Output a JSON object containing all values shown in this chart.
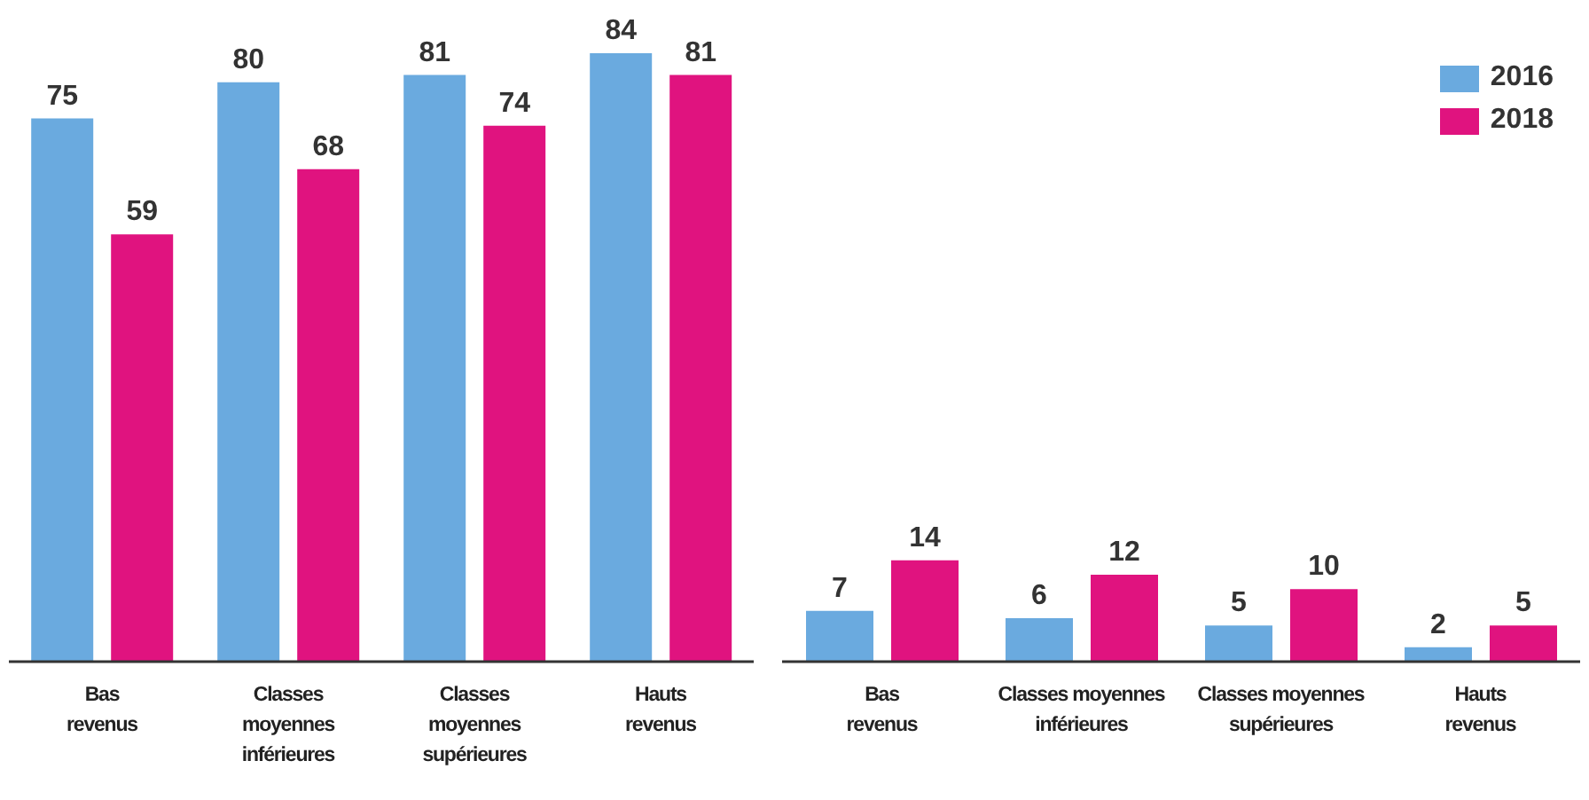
{
  "chart_data": [
    {
      "type": "bar",
      "categories": [
        "Bas\nrevenus",
        "Classes\nmoyennes\ninférieures",
        "Classes\nmoyennes\nsupérieures",
        "Hauts\nrevenus"
      ],
      "series": [
        {
          "color": "#6aaadf",
          "values": [
            75,
            80,
            81,
            84
          ]
        },
        {
          "color": "#e0137f",
          "values": [
            59,
            68,
            74,
            81
          ]
        }
      ],
      "data_labels": true,
      "legend": false
    },
    {
      "type": "bar",
      "categories": [
        "Bas\nrevenus",
        "Classes moyennes\ninférieures",
        "Classes moyennes\nsupérieures",
        "Hauts\nrevenus"
      ],
      "series": [
        {
          "name": "2016",
          "color": "#6aaadf",
          "values": [
            7,
            6,
            5,
            2
          ]
        },
        {
          "name": "2018",
          "color": "#e0137f",
          "values": [
            14,
            12,
            10,
            5
          ]
        }
      ],
      "data_labels": true,
      "legend": "top right"
    }
  ]
}
